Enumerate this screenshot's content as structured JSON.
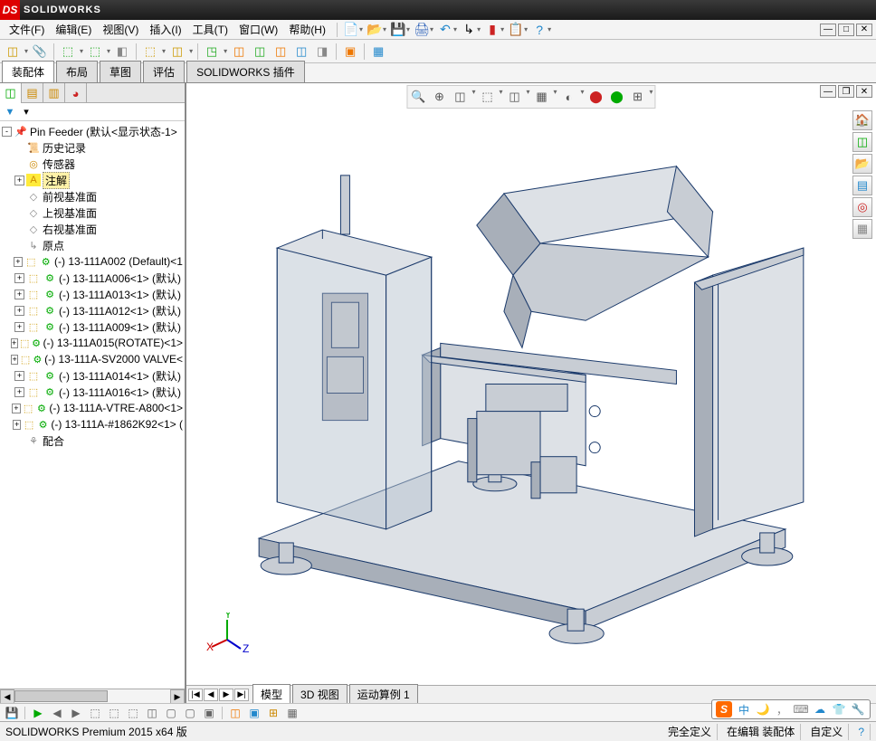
{
  "app": {
    "name": "SOLIDWORKS",
    "logo_text": "DS"
  },
  "menus": [
    {
      "label": "文件(F)"
    },
    {
      "label": "编辑(E)"
    },
    {
      "label": "视图(V)"
    },
    {
      "label": "插入(I)"
    },
    {
      "label": "工具(T)"
    },
    {
      "label": "窗口(W)"
    },
    {
      "label": "帮助(H)"
    }
  ],
  "menu_icons": [
    {
      "glyph": "📄",
      "color": "#5aa",
      "name": "new"
    },
    {
      "glyph": "📂",
      "color": "#c80",
      "name": "open"
    },
    {
      "glyph": "💾",
      "color": "#26a",
      "name": "save"
    },
    {
      "glyph": "🖨",
      "color": "#36b",
      "name": "print"
    },
    {
      "glyph": "↶",
      "color": "#28c",
      "name": "undo"
    },
    {
      "glyph": "↳",
      "color": "#000",
      "name": "select"
    },
    {
      "glyph": "▮",
      "color": "#c22",
      "name": "rebuild-light"
    },
    {
      "glyph": "📋",
      "color": "#888",
      "name": "options-grid"
    },
    {
      "glyph": "?",
      "color": "#28c",
      "name": "help"
    }
  ],
  "toolbar_icons": [
    {
      "glyph": "◫",
      "color": "#c90",
      "has_dd": true
    },
    {
      "glyph": "📎",
      "color": "#888"
    },
    {
      "sep": true
    },
    {
      "glyph": "⬚",
      "color": "#2a2",
      "has_dd": true
    },
    {
      "glyph": "⬚",
      "color": "#2a2",
      "has_dd": true
    },
    {
      "glyph": "◧",
      "color": "#888"
    },
    {
      "sep": true
    },
    {
      "glyph": "⬚",
      "color": "#c90",
      "has_dd": true
    },
    {
      "glyph": "◫",
      "color": "#c90",
      "has_dd": true
    },
    {
      "sep": true
    },
    {
      "glyph": "◳",
      "color": "#2a2",
      "has_dd": true
    },
    {
      "glyph": "◫",
      "color": "#e70"
    },
    {
      "glyph": "◫",
      "color": "#2a2"
    },
    {
      "glyph": "◫",
      "color": "#e70"
    },
    {
      "glyph": "◫",
      "color": "#28c"
    },
    {
      "glyph": "◨",
      "color": "#888"
    },
    {
      "sep": true
    },
    {
      "glyph": "▣",
      "color": "#e70"
    },
    {
      "sep": true
    },
    {
      "glyph": "▦",
      "color": "#28c"
    }
  ],
  "cmd_tabs": [
    {
      "label": "装配体",
      "active": true
    },
    {
      "label": "布局"
    },
    {
      "label": "草图"
    },
    {
      "label": "评估"
    },
    {
      "label": "SOLIDWORKS 插件"
    }
  ],
  "tree_tabs": [
    {
      "glyph": "◫",
      "color": "#0a0",
      "active": true
    },
    {
      "glyph": "▤",
      "color": "#c80"
    },
    {
      "glyph": "▥",
      "color": "#c80"
    },
    {
      "glyph": "◕",
      "color": "#c22"
    }
  ],
  "filter": {
    "icon": "▼",
    "dd": "▾"
  },
  "tree": {
    "root": {
      "icon": "📌",
      "icon_color": "#c90",
      "label": "Pin Feeder  (默认<显示状态-1>",
      "exp": "-",
      "indent": 0
    },
    "nodes": [
      {
        "icon": "📜",
        "icon_color": "#c80",
        "label": "历史记录",
        "indent": 1
      },
      {
        "icon": "◎",
        "icon_color": "#c80",
        "label": "传感器",
        "indent": 1
      },
      {
        "icon": "A",
        "icon_color": "#c80",
        "label": "注解",
        "indent": 1,
        "exp": "+",
        "sel": true,
        "icon_bg": "#ffeb3b"
      },
      {
        "icon": "◇",
        "icon_color": "#888",
        "label": "前视基准面",
        "indent": 1
      },
      {
        "icon": "◇",
        "icon_color": "#888",
        "label": "上视基准面",
        "indent": 1
      },
      {
        "icon": "◇",
        "icon_color": "#888",
        "label": "右视基准面",
        "indent": 1
      },
      {
        "icon": "↳",
        "icon_color": "#888",
        "label": "原点",
        "indent": 1
      },
      {
        "icon": "⚙",
        "icon_color": "#0a0",
        "label": "(-) 13-111A002 (Default)<1",
        "indent": 1,
        "exp": "+",
        "pre": "⬚"
      },
      {
        "icon": "⚙",
        "icon_color": "#0a0",
        "label": "(-) 13-111A006<1> (默认)",
        "indent": 1,
        "exp": "+",
        "pre": "⬚"
      },
      {
        "icon": "⚙",
        "icon_color": "#0a0",
        "label": "(-) 13-111A013<1> (默认)",
        "indent": 1,
        "exp": "+",
        "pre": "⬚"
      },
      {
        "icon": "⚙",
        "icon_color": "#0a0",
        "label": "(-) 13-111A012<1> (默认)",
        "indent": 1,
        "exp": "+",
        "pre": "⬚"
      },
      {
        "icon": "⚙",
        "icon_color": "#0a0",
        "label": "(-) 13-111A009<1> (默认)",
        "indent": 1,
        "exp": "+",
        "pre": "⬚"
      },
      {
        "icon": "⚙",
        "icon_color": "#0a0",
        "label": "(-) 13-111A015(ROTATE)<1>",
        "indent": 1,
        "exp": "+",
        "pre": "⬚"
      },
      {
        "icon": "⚙",
        "icon_color": "#0a0",
        "label": "(-) 13-111A-SV2000 VALVE<",
        "indent": 1,
        "exp": "+",
        "pre": "⬚"
      },
      {
        "icon": "⚙",
        "icon_color": "#0a0",
        "label": "(-) 13-111A014<1> (默认)",
        "indent": 1,
        "exp": "+",
        "pre": "⬚"
      },
      {
        "icon": "⚙",
        "icon_color": "#0a0",
        "label": "(-) 13-111A016<1> (默认)",
        "indent": 1,
        "exp": "+",
        "pre": "⬚"
      },
      {
        "icon": "⚙",
        "icon_color": "#0a0",
        "label": "(-) 13-111A-VTRE-A800<1>",
        "indent": 1,
        "exp": "+",
        "pre": "⬚"
      },
      {
        "icon": "⚙",
        "icon_color": "#0a0",
        "label": "(-) 13-111A-#1862K92<1> (",
        "indent": 1,
        "exp": "+",
        "pre": "⬚"
      },
      {
        "icon": "⚘",
        "icon_color": "#888",
        "label": "配合",
        "indent": 1
      }
    ]
  },
  "view_toolbar": [
    {
      "glyph": "🔍",
      "has_dd": false
    },
    {
      "glyph": "⊕",
      "has_dd": false
    },
    {
      "glyph": "◫",
      "has_dd": true
    },
    {
      "glyph": "⬚",
      "has_dd": true
    },
    {
      "glyph": "◫",
      "has_dd": true
    },
    {
      "glyph": "▦",
      "has_dd": true
    },
    {
      "glyph": "◐",
      "has_dd": true
    },
    {
      "glyph": "⬤",
      "color": "#c22",
      "has_dd": false
    },
    {
      "glyph": "⬤",
      "color": "#0a0",
      "has_dd": false
    },
    {
      "glyph": "⊞",
      "has_dd": true
    }
  ],
  "right_toolbar": [
    {
      "glyph": "🏠",
      "color": "#e70"
    },
    {
      "glyph": "◫",
      "color": "#0a0"
    },
    {
      "glyph": "📂",
      "color": "#c80"
    },
    {
      "glyph": "▤",
      "color": "#28c"
    },
    {
      "glyph": "◎",
      "color": "#c22"
    },
    {
      "glyph": "▦",
      "color": "#888"
    }
  ],
  "triad": {
    "x_color": "#c00",
    "y_color": "#0a0",
    "z_color": "#00c",
    "x": "X",
    "y": "Y",
    "z": "Z"
  },
  "bottom_tabs": [
    {
      "label": "模型",
      "active": true
    },
    {
      "label": "3D 视图"
    },
    {
      "label": "运动算例 1"
    }
  ],
  "bottom_toolbar": [
    {
      "glyph": "💾",
      "color": "#26a",
      "has_dd": true
    },
    {
      "sep": true
    },
    {
      "glyph": "▶",
      "color": "#0a0"
    },
    {
      "glyph": "◀"
    },
    {
      "glyph": "▶"
    },
    {
      "glyph": "⬚"
    },
    {
      "glyph": "⬚"
    },
    {
      "glyph": "⬚"
    },
    {
      "glyph": "◫"
    },
    {
      "glyph": "▢"
    },
    {
      "glyph": "▢"
    },
    {
      "glyph": "▣"
    },
    {
      "sep": true
    },
    {
      "glyph": "◫",
      "color": "#e70"
    },
    {
      "glyph": "▣",
      "color": "#28c"
    },
    {
      "glyph": "⊞",
      "color": "#c80"
    },
    {
      "glyph": "▦"
    }
  ],
  "status": {
    "left": "SOLIDWORKS Premium 2015 x64 版",
    "def": "完全定义",
    "edit": "在编辑 装配体",
    "custom": "自定义",
    "help": "?"
  },
  "ime": {
    "logo": "S",
    "items": [
      {
        "glyph": "中",
        "color": "#28c"
      },
      {
        "glyph": "🌙",
        "color": "#888"
      },
      {
        "glyph": "，",
        "color": "#888"
      },
      {
        "glyph": "⌨",
        "color": "#888"
      },
      {
        "glyph": "☁",
        "color": "#28c"
      },
      {
        "glyph": "👕",
        "color": "#28c"
      },
      {
        "glyph": "🔧",
        "color": "#888"
      }
    ]
  },
  "model_style": {
    "edge": "#1b3a6b",
    "fill": "#c8cdd4",
    "fill_light": "#dde1e6",
    "fill_dark": "#a8afb9",
    "glass": "#b8c4d0",
    "glass_alpha": 0.5
  }
}
